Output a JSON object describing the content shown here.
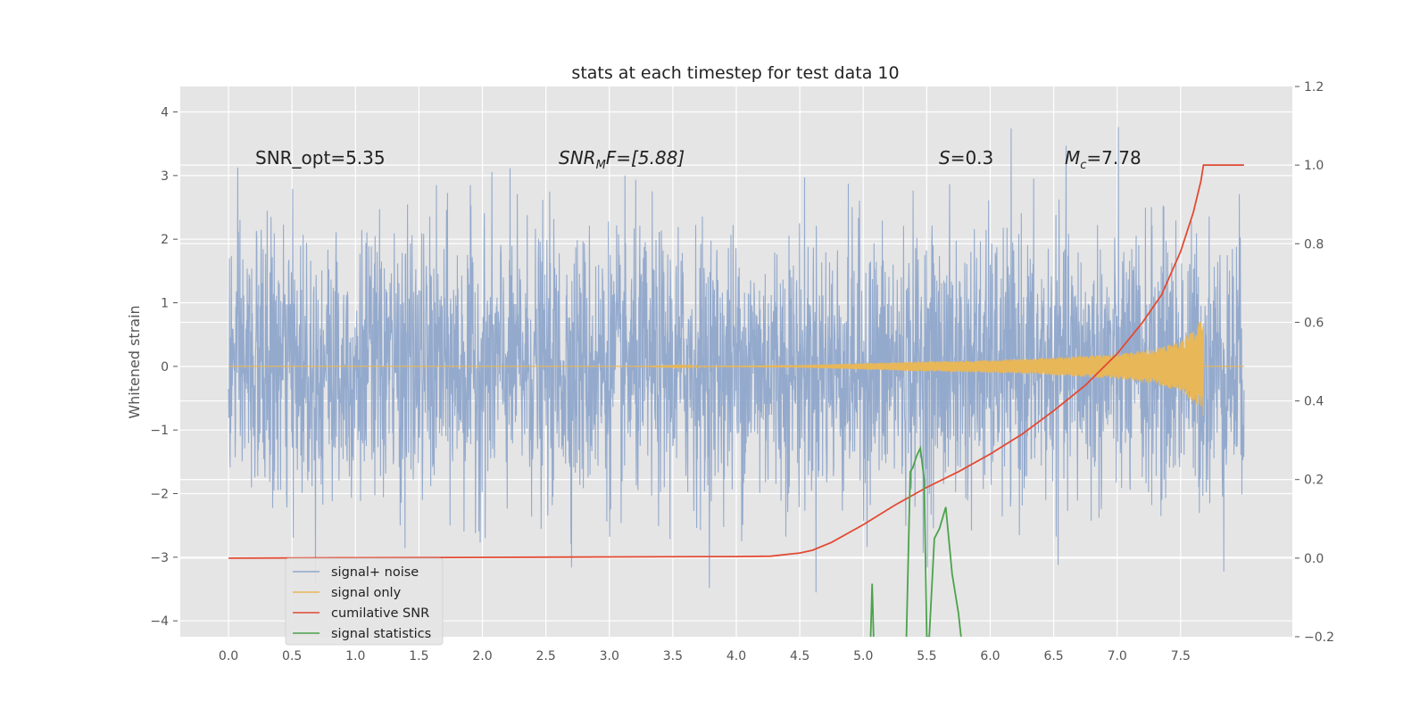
{
  "chart_data": {
    "type": "line",
    "title": "stats at each timestep for test data 10",
    "ylabel_left": "Whitened strain",
    "xlabel": "",
    "xlim": [
      -0.38,
      8.38
    ],
    "ylim_left": [
      -4.25,
      4.4
    ],
    "ylim_right": [
      -0.2,
      1.2
    ],
    "x_ticks": [
      0.0,
      0.5,
      1.0,
      1.5,
      2.0,
      2.5,
      3.0,
      3.5,
      4.0,
      4.5,
      5.0,
      5.5,
      6.0,
      6.5,
      7.0,
      7.5
    ],
    "x_tick_labels": [
      "0.0",
      "0.5",
      "1.0",
      "1.5",
      "2.0",
      "2.5",
      "3.0",
      "3.5",
      "4.0",
      "4.5",
      "5.0",
      "5.5",
      "6.0",
      "6.5",
      "7.0",
      "7.5"
    ],
    "y_left_ticks": [
      -4,
      -3,
      -2,
      -1,
      0,
      1,
      2,
      3,
      4
    ],
    "y_left_tick_labels": [
      "−4",
      "−3",
      "−2",
      "−1",
      "0",
      "1",
      "2",
      "3",
      "4"
    ],
    "y_right_ticks": [
      -0.2,
      0.0,
      0.2,
      0.4,
      0.6,
      0.8,
      1.0,
      1.2
    ],
    "y_right_tick_labels": [
      "−0.2",
      "0.0",
      "0.2",
      "0.4",
      "0.6",
      "0.8",
      "1.0",
      "1.2"
    ],
    "grid": true,
    "legend_position": "lower-left",
    "annotations": {
      "snr_opt": "SNR_opt=5.35",
      "snr_mf_main": "SNR",
      "snr_mf_sub": "M",
      "snr_mf_rest": "F=[5.88]",
      "s_italic": "S",
      "s_value": "=0.3",
      "mc_italic": "M",
      "mc_sub": "c",
      "mc_value": "=7.78"
    },
    "series": [
      {
        "name": "signal+ noise",
        "axis": "left",
        "color": "#8fa7cb",
        "description": "noisy whitened strain, x from 0.0 to 8.0, values roughly between -3.6 and 4.0",
        "x_range": [
          0.0,
          8.0
        ],
        "envelope_typical": [
          -1.9,
          1.9
        ],
        "max_peak": 4.0,
        "min_peak": -3.9
      },
      {
        "name": "signal only",
        "axis": "left",
        "color": "#e8b758",
        "description": "chirp signal growing in amplitude, peak near x=7.68",
        "x_range": [
          0.0,
          8.0
        ],
        "chirp_points": [
          {
            "x": 4.5,
            "amp": 0.02
          },
          {
            "x": 5.0,
            "amp": 0.05
          },
          {
            "x": 5.5,
            "amp": 0.08
          },
          {
            "x": 6.0,
            "amp": 0.1
          },
          {
            "x": 6.5,
            "amp": 0.14
          },
          {
            "x": 7.0,
            "amp": 0.2
          },
          {
            "x": 7.3,
            "amp": 0.28
          },
          {
            "x": 7.5,
            "amp": 0.4
          },
          {
            "x": 7.62,
            "amp": 0.6
          },
          {
            "x": 7.68,
            "amp": 0.82
          }
        ],
        "end_x": 7.68
      },
      {
        "name": "cumilative SNR",
        "axis": "right",
        "color": "#e24a33",
        "x": [
          0.0,
          1.0,
          2.0,
          3.0,
          4.0,
          4.27,
          4.5,
          4.6,
          4.75,
          5.0,
          5.25,
          5.5,
          5.75,
          6.0,
          6.25,
          6.5,
          6.75,
          7.0,
          7.2,
          7.35,
          7.5,
          7.6,
          7.66,
          7.68,
          7.8,
          8.0
        ],
        "y": [
          0.0,
          0.001,
          0.002,
          0.003,
          0.004,
          0.005,
          0.013,
          0.02,
          0.04,
          0.085,
          0.135,
          0.18,
          0.22,
          0.265,
          0.315,
          0.375,
          0.44,
          0.52,
          0.6,
          0.67,
          0.78,
          0.88,
          0.96,
          1.0,
          1.0,
          1.0
        ]
      },
      {
        "name": "signal statistics",
        "axis": "right",
        "color": "#348abd",
        "draw_color": "#4ca24c",
        "x": [
          5.05,
          5.07,
          5.09,
          5.34,
          5.37,
          5.39,
          5.42,
          5.45,
          5.48,
          5.5,
          5.52,
          5.56,
          5.6,
          5.65,
          5.7,
          5.75,
          5.77
        ],
        "y": [
          -0.3,
          -0.065,
          -0.3,
          -0.2,
          0.22,
          0.23,
          0.26,
          0.28,
          0.2,
          -0.2,
          -0.2,
          0.05,
          0.075,
          0.13,
          -0.04,
          -0.14,
          -0.2
        ]
      }
    ]
  }
}
